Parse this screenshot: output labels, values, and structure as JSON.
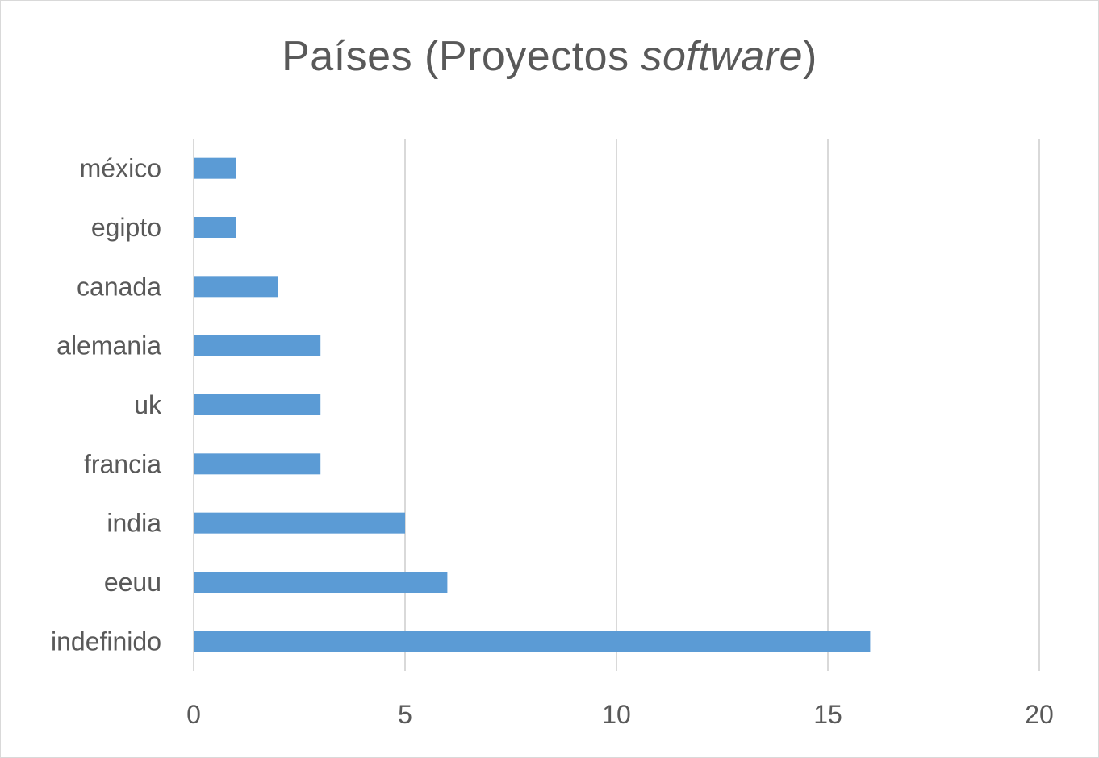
{
  "chart_data": {
    "type": "bar",
    "orientation": "horizontal",
    "title": {
      "prefix": "Países (Proyectos ",
      "italic": "software",
      "suffix": ")"
    },
    "categories": [
      "méxico",
      "egipto",
      "canada",
      "alemania",
      "uk",
      "francia",
      "india",
      "eeuu",
      "indefinido"
    ],
    "values": [
      1,
      1,
      2,
      3,
      3,
      3,
      5,
      6,
      16
    ],
    "xlim": [
      0,
      20
    ],
    "xticks": [
      0,
      5,
      10,
      15,
      20
    ],
    "xlabel": "",
    "ylabel": "",
    "grid": "vertical",
    "legend": "none",
    "bar_color": "#5b9bd5",
    "grid_color": "#d9d9d9",
    "text_color": "#595959"
  }
}
